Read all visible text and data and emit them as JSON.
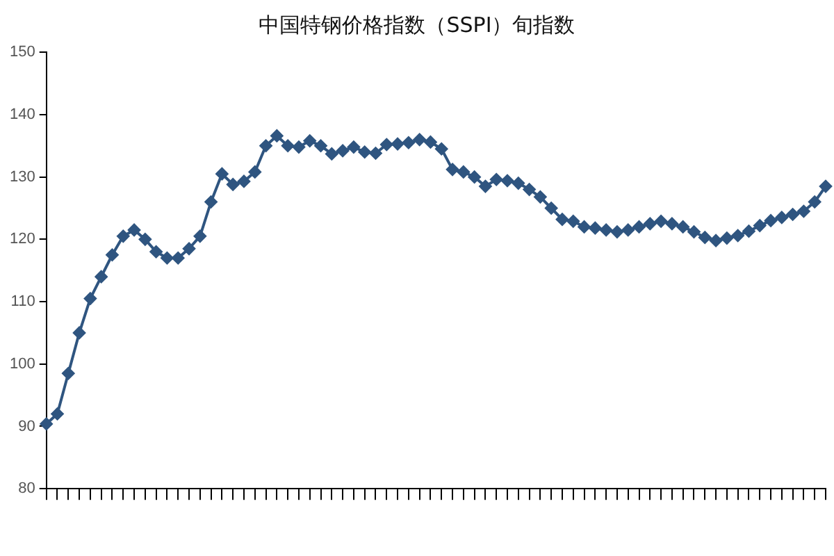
{
  "chart_data": {
    "type": "line",
    "title": "中国特钢价格指数（SSPI）旬指数",
    "categories": [
      null,
      null,
      null,
      null,
      null,
      null,
      null,
      null,
      null,
      null,
      null,
      null,
      null,
      null,
      null,
      null,
      null,
      null,
      null,
      null,
      null,
      null,
      null,
      null,
      null,
      null,
      null,
      null,
      null,
      null,
      null,
      null,
      null,
      null,
      null,
      null,
      null,
      null,
      null,
      null,
      null,
      null,
      null,
      null,
      null,
      null,
      null,
      null,
      null,
      null,
      null,
      null,
      null,
      null,
      null,
      null,
      null,
      null,
      null,
      null,
      null,
      null,
      null,
      null,
      null,
      null,
      null,
      null,
      null,
      null,
      null,
      null
    ],
    "series": [
      {
        "color": "#2f5580",
        "values": [
          90.4,
          92.0,
          98.5,
          105,
          110.5,
          114,
          117.5,
          120.5,
          121.5,
          120,
          118,
          117,
          117,
          118.5,
          120.5,
          126,
          130.5,
          128.8,
          129.3,
          130.8,
          135,
          136.6,
          135,
          134.8,
          135.8,
          135,
          133.7,
          134.2,
          134.8,
          134,
          133.8,
          135.2,
          135.3,
          135.5,
          136,
          135.6,
          134.5,
          131.2,
          130.8,
          130,
          128.5,
          129.6,
          129.4,
          129,
          128,
          126.8,
          125,
          123.2,
          122.9,
          122,
          121.8,
          121.5,
          121.2,
          121.5,
          122,
          122.5,
          122.9,
          122.5,
          122,
          121.2,
          120.3,
          119.8,
          120.2,
          120.6,
          121.3,
          122.2,
          123,
          123.5,
          124,
          124.5,
          126,
          128.5
        ]
      }
    ],
    "ylim": [
      80,
      150
    ],
    "yticks": [
      80,
      90,
      100,
      110,
      120,
      130,
      140,
      150
    ],
    "marker": "diamond",
    "legend": false,
    "grid": false
  }
}
